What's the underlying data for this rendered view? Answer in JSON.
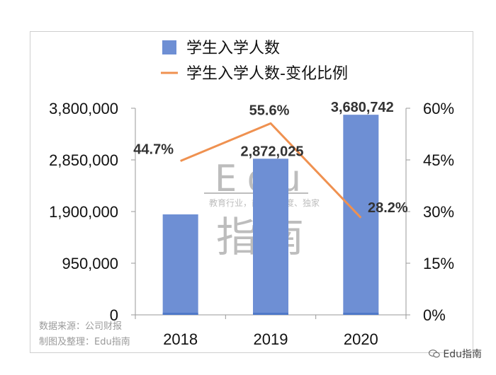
{
  "watermark": {
    "line1": "Edu",
    "tagline": "教育行业，前沿、深度、独家",
    "line2": "指南"
  },
  "footer": {
    "source": "数据来源：公司财报",
    "credit": "制图及整理：Edu指南"
  },
  "brand": "Edu指南",
  "chart_data": {
    "type": "bar",
    "categories": [
      "2018",
      "2019",
      "2020"
    ],
    "series": [
      {
        "name": "学生入学人数",
        "kind": "bar",
        "axis": "left",
        "values": [
          1848000,
          2872025,
          3680742
        ],
        "labels": [
          "",
          "2,872,025",
          "3,680,742"
        ],
        "color": "#6e8fd4"
      },
      {
        "name": "学生入学人数-变化比例",
        "kind": "line",
        "axis": "right",
        "values": [
          44.7,
          55.6,
          28.2
        ],
        "labels": [
          "44.7%",
          "55.6%",
          "28.2%"
        ],
        "color": "#ef9150"
      }
    ],
    "y_left": {
      "range": [
        0,
        3800000
      ],
      "ticks": [
        0,
        950000,
        1900000,
        2850000,
        3800000
      ],
      "tick_labels": [
        "0",
        "950,000",
        "1,900,000",
        "2,850,000",
        "3,800,000"
      ]
    },
    "y_right": {
      "range": [
        0,
        60
      ],
      "ticks": [
        0,
        15,
        30,
        45,
        60
      ],
      "tick_labels": [
        "0%",
        "15%",
        "30%",
        "45%",
        "60%"
      ]
    },
    "legend_position": "top",
    "grid": false,
    "bar_base_color": "#4f79c9"
  }
}
